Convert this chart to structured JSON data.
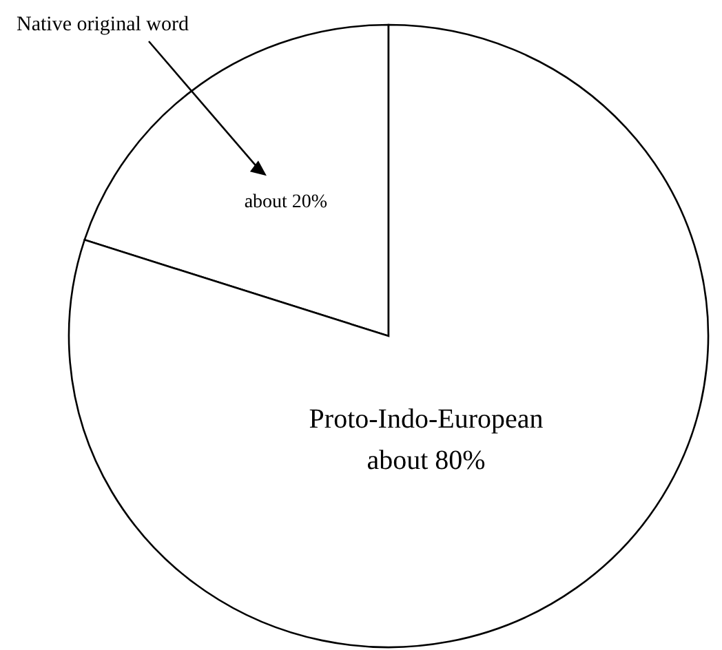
{
  "chart_data": {
    "type": "pie",
    "categories": [
      "Native original word",
      "Proto-Indo-European"
    ],
    "values": [
      20,
      80
    ],
    "colors": [
      "#ffffff",
      "#ffffff"
    ],
    "value_labels": [
      "about 20%",
      "about 80%"
    ]
  }
}
